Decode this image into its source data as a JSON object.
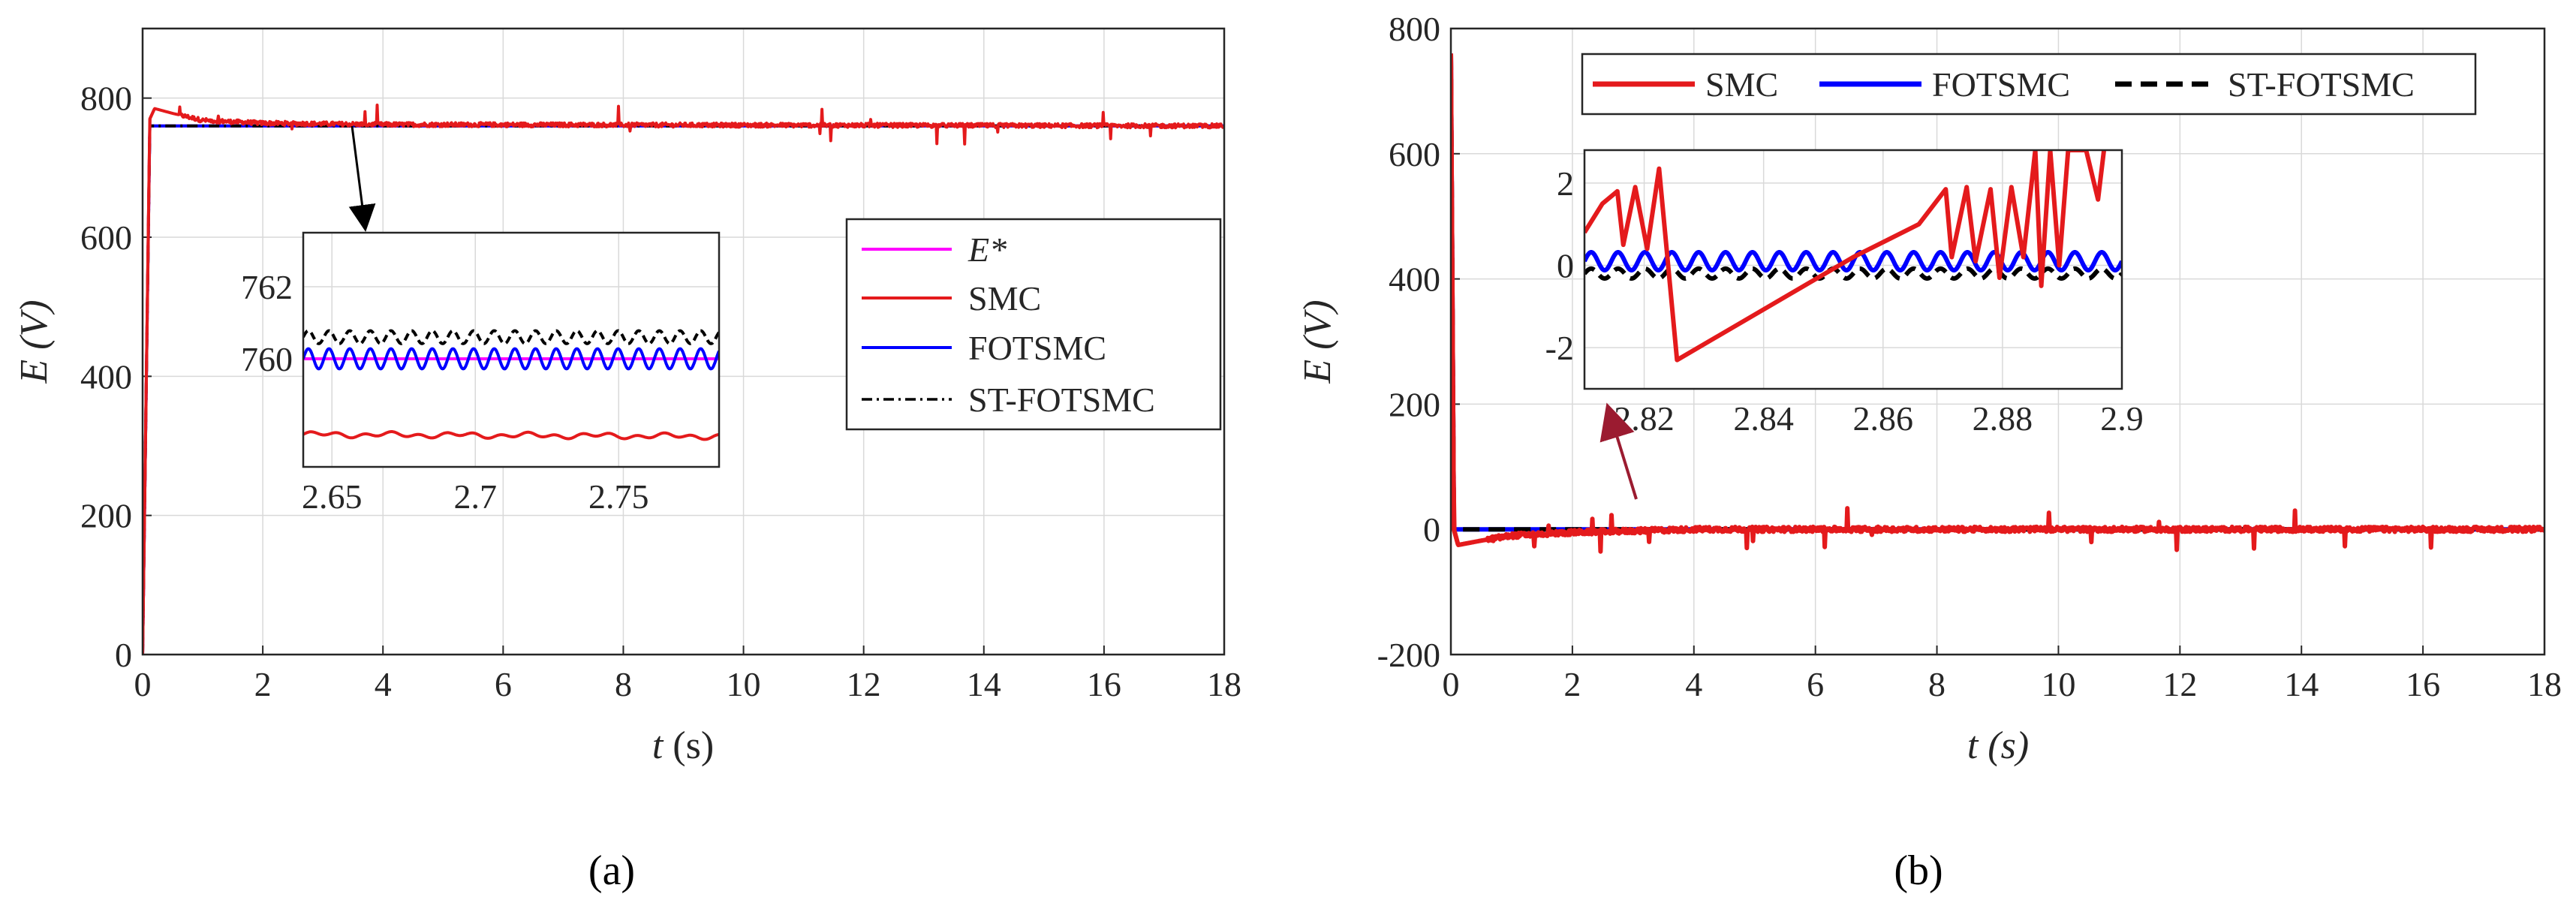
{
  "figure": {
    "captions": [
      "(a)",
      "(b)"
    ]
  },
  "colors": {
    "E_star": "#ff00ff",
    "SMC": "#e41a1c",
    "FOTSMC": "#0000ff",
    "ST_FOTSMC": "#000000",
    "grid": "#d9d9d9",
    "axis": "#262626",
    "arrow_b": "#9b1b30"
  },
  "chart_data": [
    {
      "id": "a",
      "type": "line",
      "caption": "(a)",
      "xlabel_var": "t",
      "xlabel_unit": "(s)",
      "ylabel": "E (V)",
      "xlim": [
        0,
        18
      ],
      "ylim": [
        0,
        900
      ],
      "xticks": [
        0,
        2,
        4,
        6,
        8,
        10,
        12,
        14,
        16,
        18
      ],
      "yticks": [
        0,
        200,
        400,
        600,
        800
      ],
      "grid": true,
      "legend_position": "middle-right",
      "reference_value": 760,
      "series": [
        {
          "name": "E*",
          "label": "E*",
          "style": "solid",
          "color_key": "E_star",
          "points": [
            [
              0,
              0
            ],
            [
              0.12,
              760
            ],
            [
              18,
              760
            ]
          ]
        },
        {
          "name": "SMC",
          "label": "SMC",
          "style": "solid-noisy",
          "color_key": "SMC",
          "points": [
            [
              0,
              0
            ],
            [
              0.12,
              770
            ],
            [
              0.2,
              785
            ],
            [
              0.5,
              778
            ],
            [
              1,
              768
            ],
            [
              2,
              764
            ],
            [
              4,
              762
            ],
            [
              18,
              760
            ]
          ]
        },
        {
          "name": "FOTSMC",
          "label": "FOTSMC",
          "style": "solid",
          "color_key": "FOTSMC",
          "points": [
            [
              0,
              0
            ],
            [
              0.12,
              760
            ],
            [
              18,
              760
            ]
          ]
        },
        {
          "name": "ST-FOTSMC",
          "label": "ST-FOTSMC",
          "style": "dashdot",
          "color_key": "ST_FOTSMC",
          "points": [
            [
              0,
              0
            ],
            [
              0.12,
              760
            ],
            [
              18,
              760
            ]
          ]
        }
      ],
      "inset": {
        "xlim": [
          2.64,
          2.785
        ],
        "ylim": [
          757,
          763.5
        ],
        "xticks": [
          2.65,
          2.7,
          2.75
        ],
        "xtick_labels": [
          "2.65",
          "2.7",
          "2.75"
        ],
        "yticks": [
          760,
          762
        ],
        "ytick_labels": [
          "760",
          "762"
        ],
        "series": [
          {
            "name": "E*",
            "level": 760.0,
            "amplitude": 0.0,
            "period": 0.0072
          },
          {
            "name": "FOTSMC",
            "level": 760.0,
            "amplitude": 0.28,
            "period": 0.0072
          },
          {
            "name": "ST-FOTSMC",
            "level": 760.6,
            "amplitude": 0.18,
            "period": 0.0072
          },
          {
            "name": "SMC",
            "level": 757.9,
            "amplitude": 0.05,
            "period": 0.0095
          }
        ],
        "zoom_point": [
          3.6,
          760
        ]
      }
    },
    {
      "id": "b",
      "type": "line",
      "caption": "(b)",
      "xlabel_var": "t",
      "xlabel_unit": "(s)",
      "ylabel": "E (V)",
      "xlim": [
        0,
        18
      ],
      "ylim": [
        -200,
        800
      ],
      "xticks": [
        0,
        2,
        4,
        6,
        8,
        10,
        12,
        14,
        16,
        18
      ],
      "yticks": [
        -200,
        0,
        200,
        400,
        600,
        800
      ],
      "grid": true,
      "legend_position": "top",
      "series": [
        {
          "name": "SMC",
          "label": "SMC",
          "style": "solid-noisy",
          "color_key": "SMC",
          "points": [
            [
              0,
              760
            ],
            [
              0.05,
              0
            ],
            [
              0.12,
              -25
            ],
            [
              0.5,
              -18
            ],
            [
              1,
              -10
            ],
            [
              2,
              -5
            ],
            [
              4,
              0
            ],
            [
              18,
              0
            ]
          ]
        },
        {
          "name": "FOTSMC",
          "label": "FOTSMC",
          "style": "solid",
          "color_key": "FOTSMC",
          "points": [
            [
              0,
              760
            ],
            [
              0.05,
              0
            ],
            [
              18,
              0
            ]
          ]
        },
        {
          "name": "ST-FOTSMC",
          "label": "ST-FOTSMC",
          "style": "dashed",
          "color_key": "ST_FOTSMC",
          "points": [
            [
              0,
              760
            ],
            [
              0.05,
              0
            ],
            [
              18,
              0
            ]
          ]
        }
      ],
      "inset": {
        "xlim": [
          2.81,
          2.9
        ],
        "ylim": [
          -3,
          2.8
        ],
        "xticks": [
          2.82,
          2.84,
          2.86,
          2.88,
          2.9
        ],
        "xtick_labels": [
          "2.82",
          "2.84",
          "2.86",
          "2.88",
          "2.9"
        ],
        "yticks": [
          -2,
          0,
          2
        ],
        "ytick_labels": [
          "-2",
          "0",
          "2"
        ],
        "series": [
          {
            "name": "FOTSMC",
            "level": 0.1,
            "amplitude": 0.22,
            "period": 0.0045
          },
          {
            "name": "ST-FOTSMC",
            "level": -0.2,
            "amplitude": 0.12,
            "period": 0.0045
          },
          {
            "name": "SMC",
            "points": [
              [
                2.81,
                0.8
              ],
              [
                2.813,
                1.5
              ],
              [
                2.8155,
                1.8
              ],
              [
                2.8165,
                0.5
              ],
              [
                2.8185,
                1.9
              ],
              [
                2.8205,
                0.4
              ],
              [
                2.8225,
                2.35
              ],
              [
                2.8255,
                -2.3
              ],
              [
                2.855,
                0.2
              ],
              [
                2.866,
                1.0
              ],
              [
                2.8705,
                1.85
              ],
              [
                2.8715,
                0.2
              ],
              [
                2.874,
                1.9
              ],
              [
                2.8755,
                0.1
              ],
              [
                2.878,
                1.85
              ],
              [
                2.8795,
                -0.3
              ],
              [
                2.8815,
                1.9
              ],
              [
                2.8835,
                0.2
              ],
              [
                2.8855,
                2.8
              ],
              [
                2.8865,
                -0.5
              ],
              [
                2.888,
                2.8
              ],
              [
                2.8895,
                0.0
              ],
              [
                2.891,
                2.8
              ],
              [
                2.894,
                2.8
              ],
              [
                2.896,
                1.6
              ],
              [
                2.897,
                2.8
              ]
            ]
          }
        ],
        "zoom_point": [
          2.75,
          0
        ]
      }
    }
  ]
}
